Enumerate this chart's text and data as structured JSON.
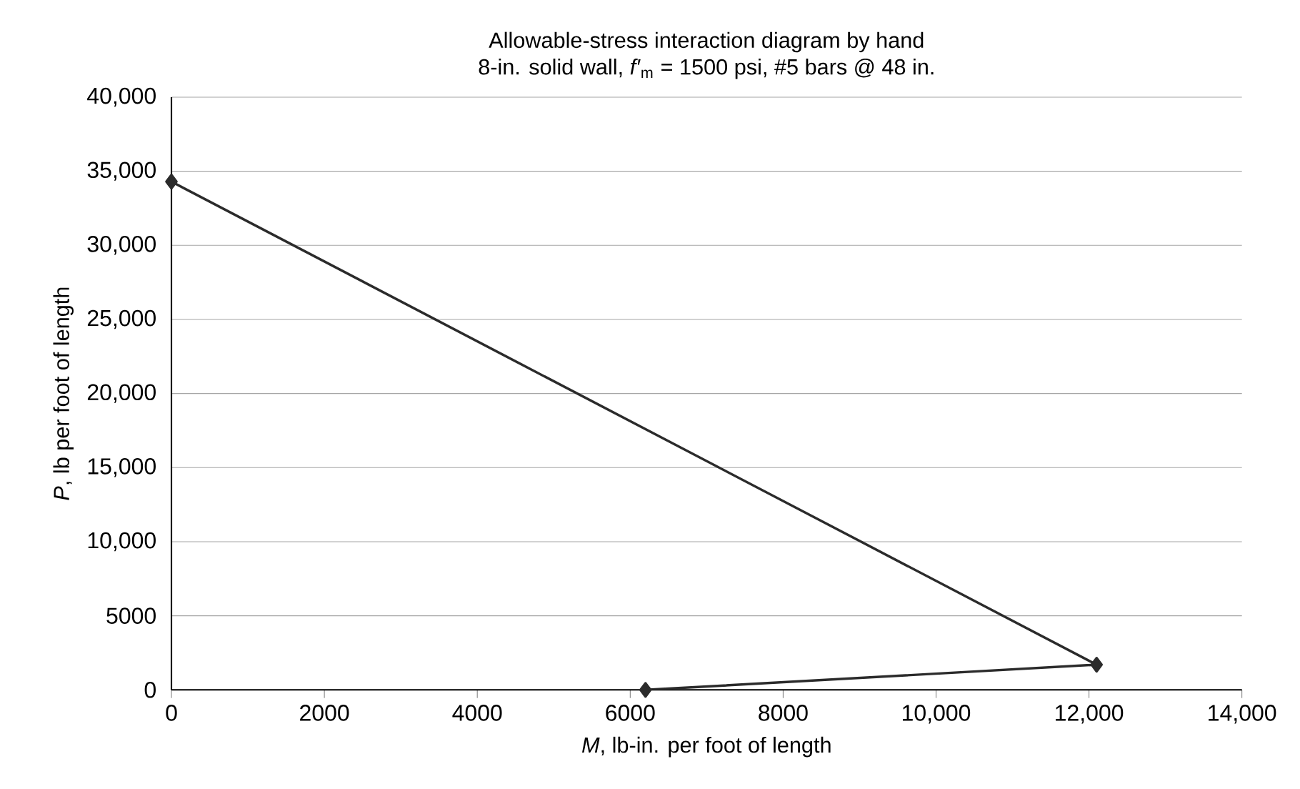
{
  "chart_data": {
    "type": "line",
    "title": "Allowable-stress interaction diagram by hand",
    "subtitle": "8-in. solid wall, *f′*$_{m}$ = 1500 psi, #5 bars @ 48 in.",
    "xlabel": "*M*, lb-in. per foot of length",
    "ylabel": "*P*, lb per foot of length",
    "x": [
      0,
      12100,
      6200
    ],
    "values": [
      34300,
      1700,
      0
    ],
    "color": "#2b2b2b",
    "marker": "diamond",
    "line_style": "solid",
    "grid": "y",
    "xlim": [
      0,
      14000
    ],
    "ylim": [
      0,
      40000
    ],
    "xticks": [
      0,
      2000,
      4000,
      6000,
      8000,
      {
        "value": 10000,
        "label": "10,000"
      },
      {
        "value": 12000,
        "label": "12,000"
      },
      {
        "value": 14000,
        "label": "14,000"
      }
    ],
    "yticks": [
      0,
      5000,
      {
        "value": 10000,
        "label": "10,000"
      },
      {
        "value": 15000,
        "label": "15,000"
      },
      {
        "value": 20000,
        "label": "20,000"
      },
      {
        "value": 25000,
        "label": "25,000"
      },
      {
        "value": 30000,
        "label": "30,000"
      },
      {
        "value": 35000,
        "label": "35,000"
      },
      {
        "value": 40000,
        "label": "40,000"
      }
    ]
  }
}
